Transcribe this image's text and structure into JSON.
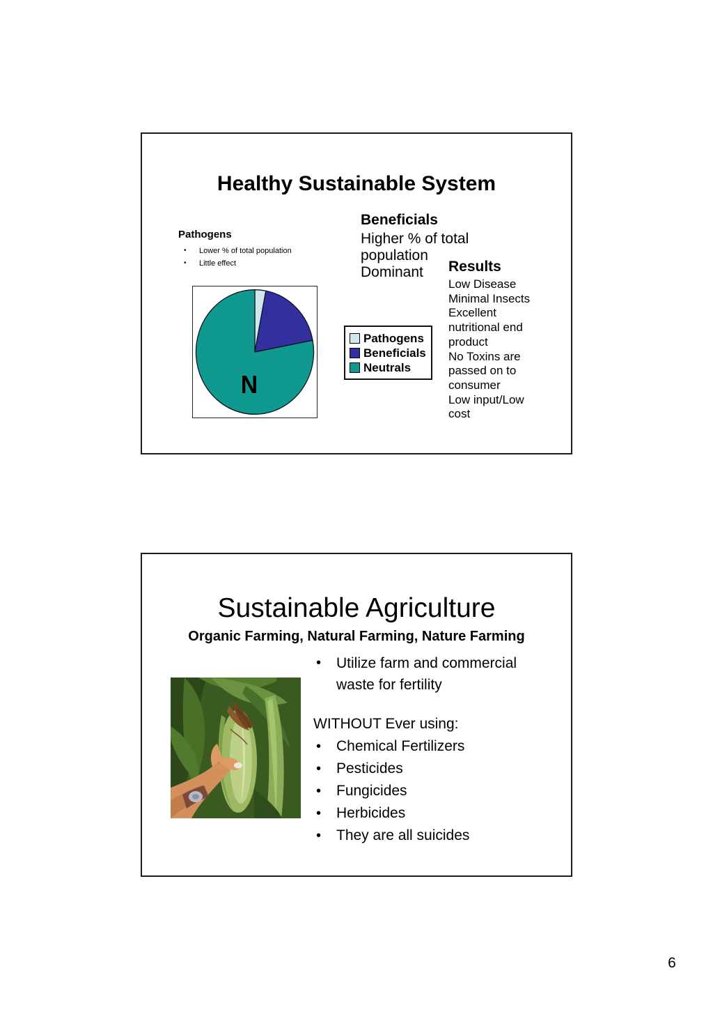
{
  "page": {
    "number": "6"
  },
  "slide1": {
    "title": "Healthy Sustainable System",
    "pathogens": {
      "heading": "Pathogens",
      "bullets": [
        "Lower % of total population",
        "Little effect"
      ]
    },
    "beneficials": {
      "heading": "Beneficials",
      "body": "Higher % of total\npopulation\nDominant"
    },
    "results": {
      "heading": "Results",
      "body": "Low Disease\nMinimal Insects\nExcellent\nnutritional end\nproduct\nNo Toxins are\npassed on to\nconsumer\nLow input/Low\ncost"
    },
    "legend": [
      {
        "label": "Pathogens"
      },
      {
        "label": "Beneficials"
      },
      {
        "label": "Neutrals"
      }
    ],
    "pie_center_label": "N"
  },
  "chart_data": {
    "type": "pie",
    "title": "Healthy Sustainable System",
    "labels": [
      "Pathogens",
      "Beneficials",
      "Neutrals"
    ],
    "values_pct": [
      3,
      19,
      78
    ],
    "colors": [
      "#cfe8ee",
      "#32309f",
      "#0f998f"
    ],
    "center_label": "N",
    "legend_position": "right of chart",
    "notes": "unlabeled pie; Neutrals dominant, small Pathogens sliver at 12 o'clock, Beneficials wedge upper-right"
  },
  "slide2": {
    "title": "Sustainable Agriculture",
    "subtitle": "Organic Farming, Natural Farming, Nature Farming",
    "lead_bullet": "Utilize farm and commercial waste for fertility",
    "without_heading": "WITHOUT Ever using:",
    "bullets": [
      "Chemical Fertilizers",
      "Pesticides",
      "Fungicides",
      "Herbicides",
      "They are all suicides"
    ],
    "photo_subject": "hand touching ear of corn on stalk"
  }
}
